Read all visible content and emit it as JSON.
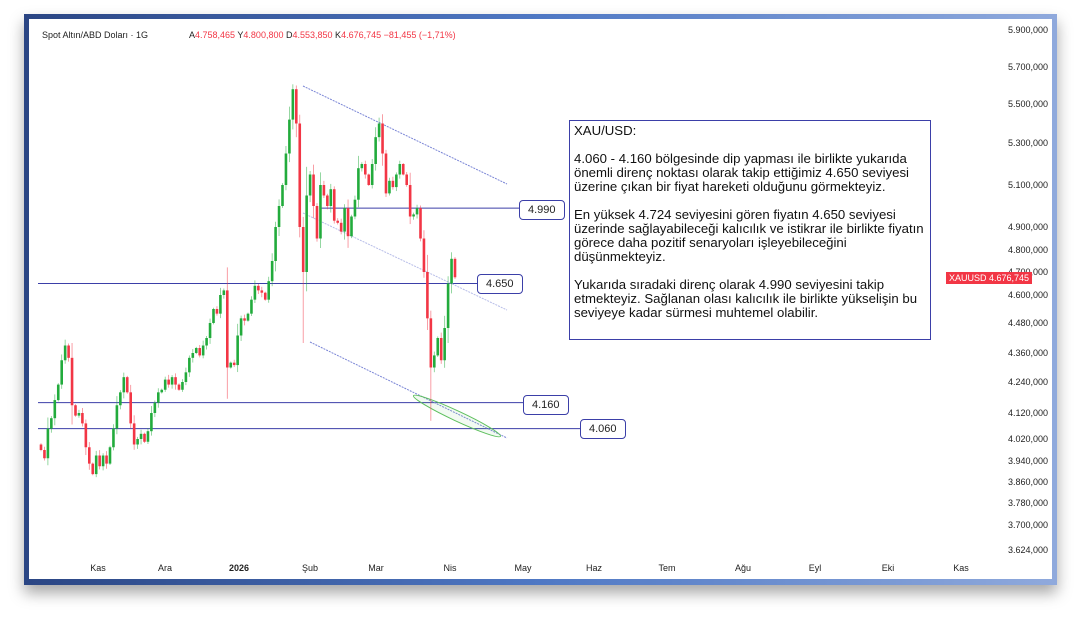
{
  "header": {
    "symbol": "Spot Altın/ABD Doları · 1G",
    "open_label": "A",
    "open": "4.758,465",
    "high_label": "Y",
    "high": "4.800,800",
    "low_label": "D",
    "low": "4.553,850",
    "close_label": "K",
    "close": "4.676,745",
    "change": "−81,455 (−1,71%)"
  },
  "price_badge": {
    "symbol": "XAUUSD",
    "price": "4.676,745",
    "color": "#f23645"
  },
  "note": {
    "title": "XAU/USD:",
    "p1": "4.060 - 4.160 bölgesinde dip yapması ile birlikte yukarıda önemli direnç noktası olarak takip ettiğimiz 4.650 seviyesi üzerine çıkan bir fiyat hareketi olduğunu görmekteyiz.",
    "p2": "En yüksek 4.724 seviyesini gören fiyatın 4.650 seviyesi üzerinde sağlayabileceği kalıcılık ve istikrar ile birlikte fiyatın görece daha pozitif senaryoları işleyebileceğini düşünmekteyiz.",
    "p3": "Yukarıda sıradaki direnç olarak 4.990 seviyesini takip etmekteyiz. Sağlanan olası kalıcılık ile birlikte yükselişin bu seviyeye kadar sürmesi muhtemel olabilir."
  },
  "chart_data": {
    "type": "candlestick",
    "colors": {
      "up": "#22ab3c",
      "down": "#f23645",
      "levels": "#3b3fa8",
      "channel": "#7b86d6",
      "zone": "#5cbf5c"
    },
    "y_ticks": [
      "5.900,000",
      "5.700,000",
      "5.500,000",
      "5.300,000",
      "5.100,000",
      "4.900,000",
      "4.800,000",
      "4.700,000",
      "4.600,000",
      "4.480,000",
      "4.360,000",
      "4.240,000",
      "4.120,000",
      "4.020,000",
      "3.940,000",
      "3.860,000",
      "3.780,000",
      "3.700,000",
      "3.624,000"
    ],
    "y_tick_values": [
      5900,
      5700,
      5500,
      5300,
      5100,
      4900,
      4800,
      4700,
      4600,
      4480,
      4360,
      4240,
      4120,
      4020,
      3940,
      3860,
      3780,
      3700,
      3624
    ],
    "x_ticks": [
      "Kas",
      "Ara",
      "2026",
      "Şub",
      "Mar",
      "Nis",
      "May",
      "Haz",
      "Tem",
      "Ağu",
      "Eyl",
      "Eki",
      "Kas"
    ],
    "levels": [
      {
        "label": "4.990",
        "value": 4990
      },
      {
        "label": "4.650",
        "value": 4650
      },
      {
        "label": "4.160",
        "value": 4160
      },
      {
        "label": "4.060",
        "value": 4060
      }
    ],
    "first_open": 4000,
    "closes": [
      3980,
      3950,
      4060,
      4100,
      4170,
      4230,
      4330,
      4390,
      4340,
      4150,
      4110,
      4120,
      4080,
      3990,
      3930,
      3890,
      3960,
      3920,
      3960,
      3930,
      3990,
      4060,
      4150,
      4200,
      4260,
      4200,
      4080,
      4000,
      4020,
      4040,
      4010,
      4050,
      4120,
      4160,
      4200,
      4210,
      4250,
      4230,
      4260,
      4230,
      4210,
      4240,
      4280,
      4340,
      4360,
      4380,
      4350,
      4390,
      4420,
      4480,
      4540,
      4520,
      4600,
      4620,
      4300,
      4320,
      4310,
      4430,
      4500,
      4490,
      4520,
      4580,
      4640,
      4620,
      4610,
      4580,
      4660,
      4750,
      4900,
      5000,
      5100,
      5250,
      5420,
      5580,
      5400,
      4900,
      4700,
      5050,
      5150,
      5000,
      4850,
      5100,
      5050,
      5000,
      5080,
      4930,
      4920,
      4880,
      4990,
      4860,
      4950,
      5030,
      5180,
      5200,
      5150,
      5100,
      5200,
      5330,
      5400,
      5250,
      5060,
      5120,
      5090,
      5150,
      5200,
      5150,
      5100,
      4950,
      4960,
      4990,
      4850,
      4700,
      4500,
      4300,
      4350,
      4420,
      4330,
      4460,
      4650,
      4760,
      4677
    ],
    "high_overrides": {
      "74": 5600,
      "98": 5430,
      "119": 4790
    },
    "low_overrides": {
      "76": 4400,
      "113": 4090
    }
  }
}
